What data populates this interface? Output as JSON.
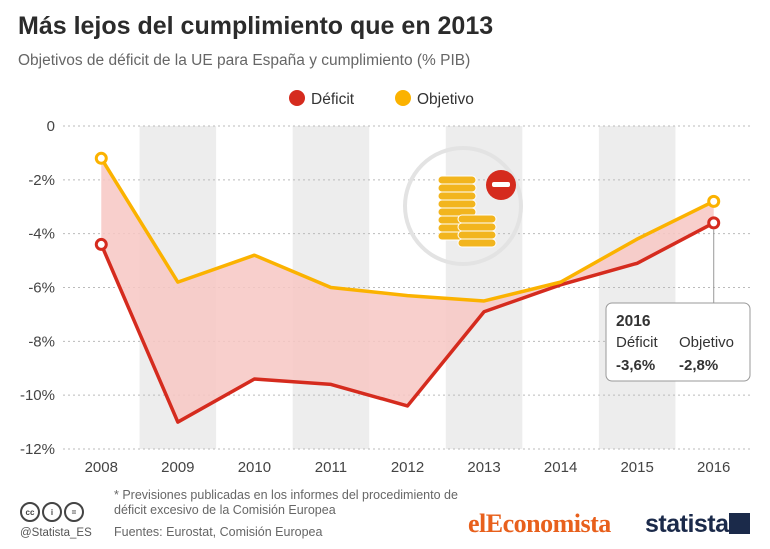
{
  "title": "Más lejos del cumplimiento que en 2013",
  "subtitle": "Objetivos de déficit de la UE para España y cumplimiento (% PIB)",
  "footnote": "* Previsiones publicadas en los informes del procedimiento de déficit excesivo de la Comisión Europea",
  "sources": "Fuentes: Eurostat, Comisión Europea",
  "handle": "@Statista_ES",
  "brand_left": "elEconomista",
  "brand_right": "statista",
  "colors": {
    "deficit": "#d52b1e",
    "objetivo": "#fbb200",
    "gap_fill": "#f7c7c3"
  },
  "callout": {
    "year": "2016",
    "deficit_label": "Déficit",
    "objetivo_label": "Objetivo",
    "deficit_value": "-3,6%",
    "objetivo_value": "-2,8%"
  },
  "chart_data": {
    "type": "line",
    "title": "Más lejos del cumplimiento que en 2013",
    "subtitle": "Objetivos de déficit de la UE para España y cumplimiento (% PIB)",
    "categories": [
      "2008",
      "2009",
      "2010",
      "2011",
      "2012",
      "2013",
      "2014",
      "2015",
      "2016"
    ],
    "series": [
      {
        "name": "Déficit",
        "color": "#d52b1e",
        "values": [
          -4.4,
          -11.0,
          -9.4,
          -9.6,
          -10.4,
          -6.9,
          -5.9,
          -5.1,
          -3.6
        ]
      },
      {
        "name": "Objetivo",
        "color": "#fbb200",
        "values": [
          -1.2,
          -5.8,
          -4.8,
          -6.0,
          -6.3,
          -6.5,
          -5.8,
          -4.2,
          -2.8
        ]
      }
    ],
    "ylim": [
      -12,
      0
    ],
    "yticks": [
      0,
      -2,
      -4,
      -6,
      -8,
      -10,
      -12
    ],
    "ytick_labels": [
      "0",
      "-2%",
      "-4%",
      "-6%",
      "-8%",
      "-10%",
      "-12%"
    ],
    "xlabel": "",
    "ylabel": "",
    "legend": "top-center",
    "grid": true,
    "shaded_year_bands": [
      "2009",
      "2011",
      "2013",
      "2015"
    ],
    "marked_points": [
      "2008",
      "2016"
    ]
  }
}
